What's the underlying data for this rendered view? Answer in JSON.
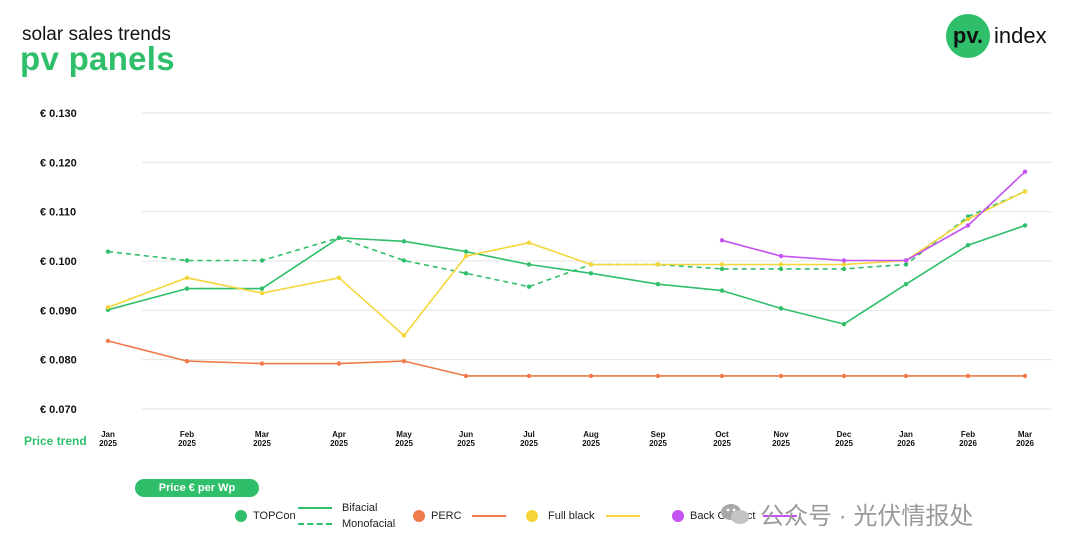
{
  "header": {
    "subtitle": "solar sales trends",
    "title": "pv panels"
  },
  "logo": {
    "badge": "pv.",
    "text": "index"
  },
  "price_trend_label": "Price trend",
  "unit_label": "Price € per Wp",
  "legend": {
    "topcon": "TOPCon",
    "bifacial": "Bifacial",
    "monofacial": "Monofacial",
    "perc": "PERC",
    "full_black": "Full black",
    "back_contact": "Back Contact"
  },
  "watermark": "公众号 · 光伏情报处",
  "colors": {
    "green": "#2fbf6b",
    "orange": "#f07a4a",
    "yellow": "#f5d63a",
    "purple": "#c552f2"
  },
  "chart_data": {
    "type": "line",
    "title": "pv panels",
    "ylabel": "Price € per Wp",
    "ylim": [
      0.07,
      0.13
    ],
    "yticks": [
      {
        "v": 0.13,
        "label": "€ 0.130"
      },
      {
        "v": 0.12,
        "label": "€ 0.120"
      },
      {
        "v": 0.11,
        "label": "€ 0.110"
      },
      {
        "v": 0.1,
        "label": "€ 0.100"
      },
      {
        "v": 0.09,
        "label": "€ 0.090"
      },
      {
        "v": 0.08,
        "label": "€ 0.080"
      },
      {
        "v": 0.07,
        "label": "€ 0.070"
      }
    ],
    "categories": [
      {
        "m": "Jan",
        "y": "2025"
      },
      {
        "m": "Feb",
        "y": "2025"
      },
      {
        "m": "Mar",
        "y": "2025"
      },
      {
        "m": "Apr",
        "y": "2025"
      },
      {
        "m": "May",
        "y": "2025"
      },
      {
        "m": "Jun",
        "y": "2025"
      },
      {
        "m": "Jul",
        "y": "2025"
      },
      {
        "m": "Aug",
        "y": "2025"
      },
      {
        "m": "Sep",
        "y": "2025"
      },
      {
        "m": "Oct",
        "y": "2025"
      },
      {
        "m": "Nov",
        "y": "2025"
      },
      {
        "m": "Dec",
        "y": "2025"
      },
      {
        "m": "Jan",
        "y": "2026"
      },
      {
        "m": "Feb",
        "y": "2026"
      },
      {
        "m": "Mar",
        "y": "2026"
      }
    ],
    "series": [
      {
        "name": "TOPCon Bifacial",
        "color": "#2fbf6b",
        "dash": false,
        "points": [
          [
            0,
            0.0901
          ],
          [
            1,
            0.0944
          ],
          [
            2,
            0.0944
          ],
          [
            3,
            0.1047
          ],
          [
            4,
            0.104
          ],
          [
            5,
            0.1019
          ],
          [
            6,
            0.0993
          ],
          [
            7,
            0.0975
          ],
          [
            8,
            0.0953
          ],
          [
            9,
            0.094
          ],
          [
            10,
            0.0904
          ],
          [
            11,
            0.0872
          ],
          [
            12,
            0.0953
          ],
          [
            13,
            0.1032
          ],
          [
            14,
            0.1072
          ]
        ]
      },
      {
        "name": "TOPCon Monofacial",
        "color": "#2fbf6b",
        "dash": true,
        "points": [
          [
            0,
            0.1019
          ],
          [
            1,
            0.1001
          ],
          [
            2,
            0.1001
          ],
          [
            3,
            0.1047
          ],
          [
            4,
            0.1001
          ],
          [
            5,
            0.0975
          ],
          [
            6,
            0.0948
          ],
          [
            7,
            0.0993
          ],
          [
            8,
            0.0993
          ],
          [
            9,
            0.0984
          ],
          [
            10,
            0.0984
          ],
          [
            11,
            0.0984
          ],
          [
            12,
            0.0993
          ],
          [
            13,
            0.109
          ],
          [
            14,
            0.1141
          ]
        ]
      },
      {
        "name": "PERC",
        "color": "#f07a4a",
        "dash": false,
        "points": [
          [
            0,
            0.0838
          ],
          [
            1,
            0.0797
          ],
          [
            2,
            0.0792
          ],
          [
            3,
            0.0792
          ],
          [
            4,
            0.0797
          ],
          [
            5,
            0.0767
          ],
          [
            6,
            0.0767
          ],
          [
            7,
            0.0767
          ],
          [
            8,
            0.0767
          ],
          [
            9,
            0.0767
          ],
          [
            10,
            0.0767
          ],
          [
            11,
            0.0767
          ],
          [
            12,
            0.0767
          ],
          [
            13,
            0.0767
          ],
          [
            14,
            0.0767
          ]
        ]
      },
      {
        "name": "Full black",
        "color": "#f5d63a",
        "dash": false,
        "points": [
          [
            0,
            0.0906
          ],
          [
            1,
            0.0966
          ],
          [
            2,
            0.0935
          ],
          [
            3,
            0.0966
          ],
          [
            4,
            0.0849
          ],
          [
            5,
            0.101
          ],
          [
            6,
            0.1037
          ],
          [
            7,
            0.0993
          ],
          [
            8,
            0.0993
          ],
          [
            9,
            0.0993
          ],
          [
            10,
            0.0993
          ],
          [
            11,
            0.0993
          ],
          [
            12,
            0.1001
          ],
          [
            13,
            0.1085
          ],
          [
            14,
            0.1141
          ]
        ]
      },
      {
        "name": "Back Contact",
        "color": "#c552f2",
        "dash": false,
        "points": [
          [
            9,
            0.1042
          ],
          [
            10,
            0.101
          ],
          [
            11,
            0.1001
          ],
          [
            12,
            0.1001
          ],
          [
            13,
            0.1072
          ],
          [
            14,
            0.1181
          ]
        ]
      }
    ]
  }
}
